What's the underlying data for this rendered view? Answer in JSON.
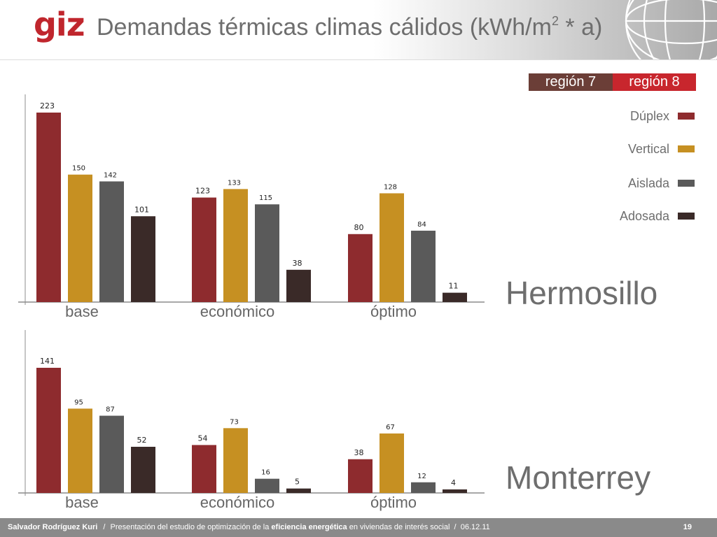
{
  "header": {
    "logo": "giz",
    "title_main": "Demandas térmicas climas cálidos (kWh/m",
    "title_sup": "2",
    "title_tail": " * a)"
  },
  "regions": {
    "r7": "región 7",
    "r8": "región 8"
  },
  "legend": [
    {
      "label": "Dúplex",
      "color": "#8e2b2e"
    },
    {
      "label": "Vertical",
      "color": "#c69022"
    },
    {
      "label": "Aislada",
      "color": "#5a5a5a"
    },
    {
      "label": "Adosada",
      "color": "#3a2a28"
    }
  ],
  "chart_data": [
    {
      "type": "bar",
      "annotation": "Hermosillo",
      "categories": [
        "base",
        "económico",
        "óptimo"
      ],
      "series": [
        {
          "name": "Dúplex",
          "color": "#8e2b2e",
          "values": [
            223,
            123,
            80
          ]
        },
        {
          "name": "Vertical",
          "color": "#c69022",
          "values": [
            150,
            133,
            128
          ]
        },
        {
          "name": "Aislada",
          "color": "#5a5a5a",
          "values": [
            142,
            115,
            84
          ]
        },
        {
          "name": "Adosada",
          "color": "#3a2a28",
          "values": [
            101,
            38,
            11
          ]
        }
      ],
      "ylim": [
        0,
        223
      ],
      "grid": false,
      "legend": "right"
    },
    {
      "type": "bar",
      "annotation": "Monterrey",
      "categories": [
        "base",
        "económico",
        "óptimo"
      ],
      "series": [
        {
          "name": "Dúplex",
          "color": "#8e2b2e",
          "values": [
            141,
            54,
            38
          ]
        },
        {
          "name": "Vertical",
          "color": "#c69022",
          "values": [
            95,
            73,
            67
          ]
        },
        {
          "name": "Aislada",
          "color": "#5a5a5a",
          "values": [
            87,
            16,
            12
          ]
        },
        {
          "name": "Adosada",
          "color": "#3a2a28",
          "values": [
            52,
            5,
            4
          ]
        }
      ],
      "ylim": [
        0,
        141
      ],
      "grid": false,
      "legend": "right"
    }
  ],
  "footer": {
    "author": "Salvador Rodríguez Kuri",
    "sep": "/",
    "text1": "Presentación del estudio de optimización de la",
    "strong": "eficiencia energética",
    "text2": "en viviendas de interés social",
    "sep2": "/",
    "date": "06.12.11",
    "page": "19"
  }
}
